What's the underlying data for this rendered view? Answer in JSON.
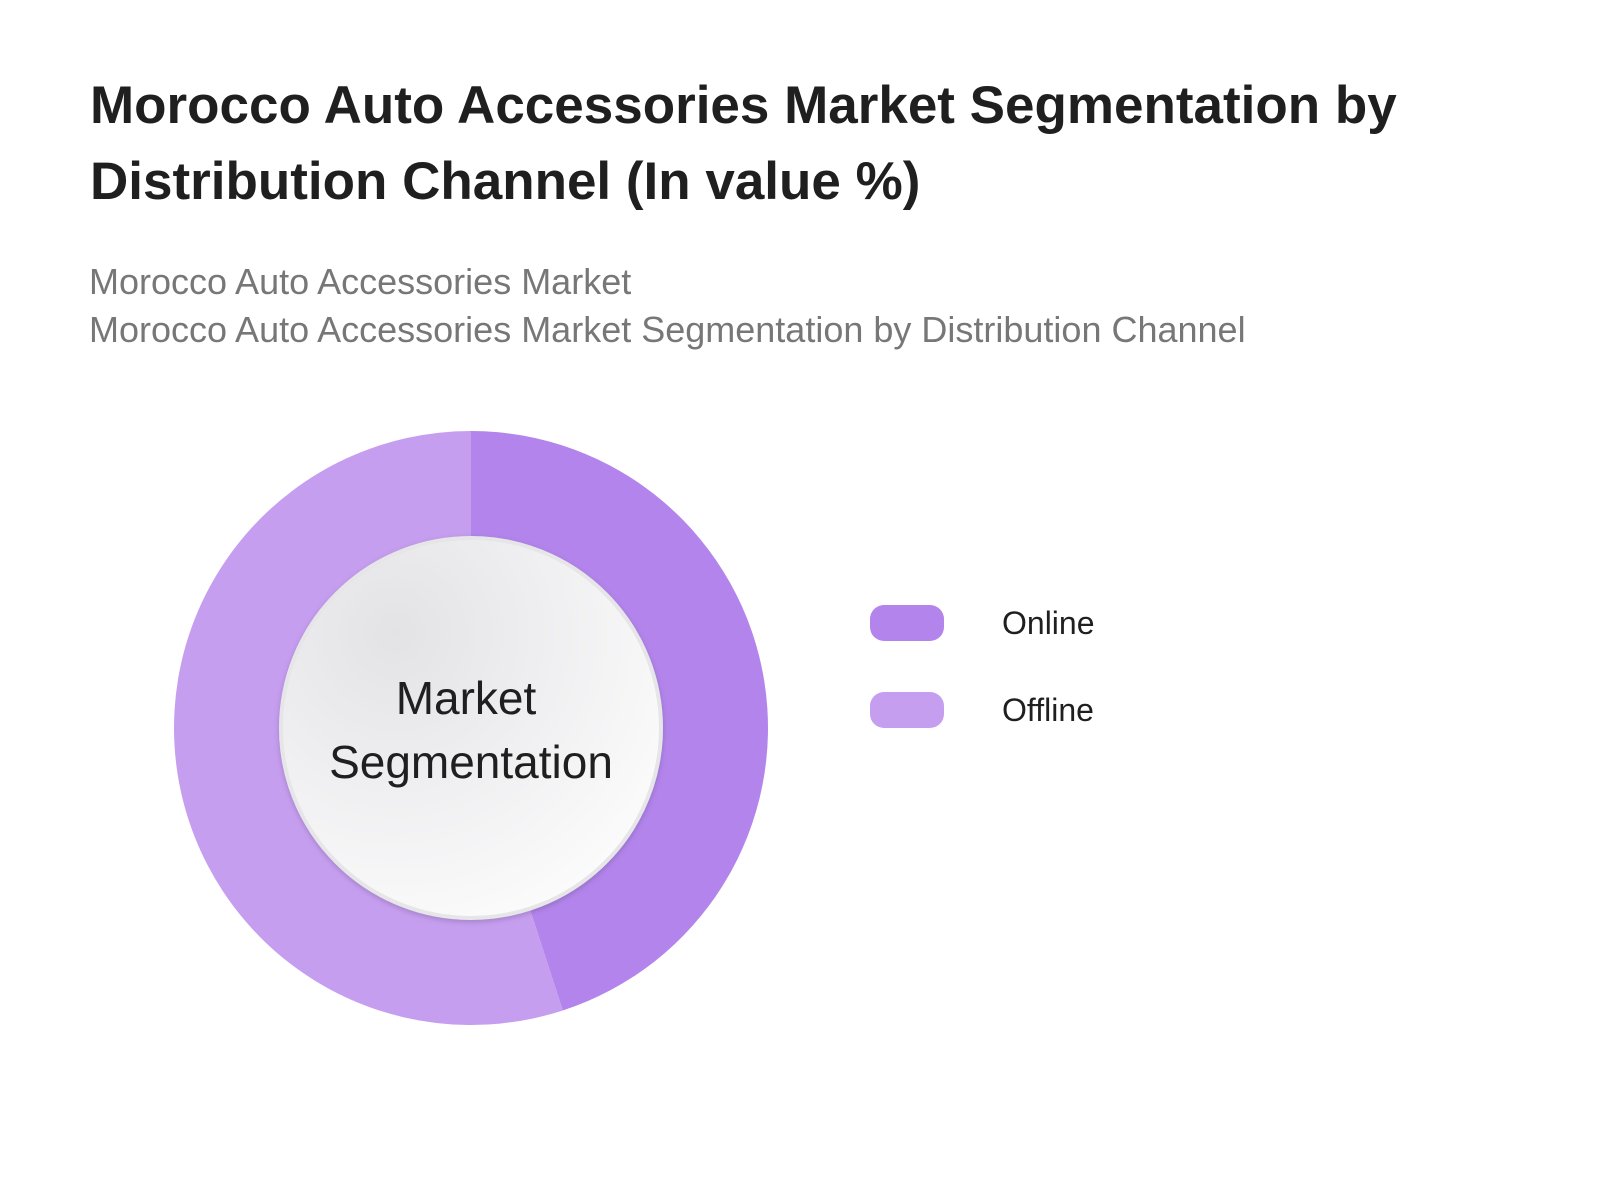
{
  "chart_data": {
    "type": "pie",
    "variant": "donut",
    "title": "Morocco Auto Accessories Market Segmentation by Distribution Channel (In value %)",
    "subtitle_lines": [
      "Morocco Auto Accessories Market",
      "Morocco Auto Accessories Market Segmentation by Distribution Channel"
    ],
    "center_label_lines": [
      "Market",
      "Segmentation"
    ],
    "unit": "%",
    "slices": [
      {
        "label": "Online",
        "value": 45,
        "color": "#b385ec"
      },
      {
        "label": "Offline",
        "value": 55,
        "color": "#c69ef0"
      }
    ],
    "legend_position": "right"
  }
}
